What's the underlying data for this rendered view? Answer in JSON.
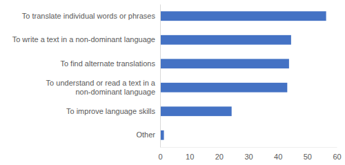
{
  "chart_data": {
    "type": "bar",
    "orientation": "horizontal",
    "categories": [
      "To translate individual words or phrases",
      "To write a text in a non-dominant language",
      "To find alternate translations",
      "To understand or read a text in a non-dominant language",
      "To improve language skills",
      "Other"
    ],
    "values": [
      56.4,
      44.5,
      43.8,
      43.2,
      24.3,
      1.3
    ],
    "color": "#4472c4",
    "xlim": [
      0,
      60
    ],
    "xticks": [
      0,
      10,
      20,
      30,
      40,
      50,
      60
    ],
    "grid": false
  }
}
